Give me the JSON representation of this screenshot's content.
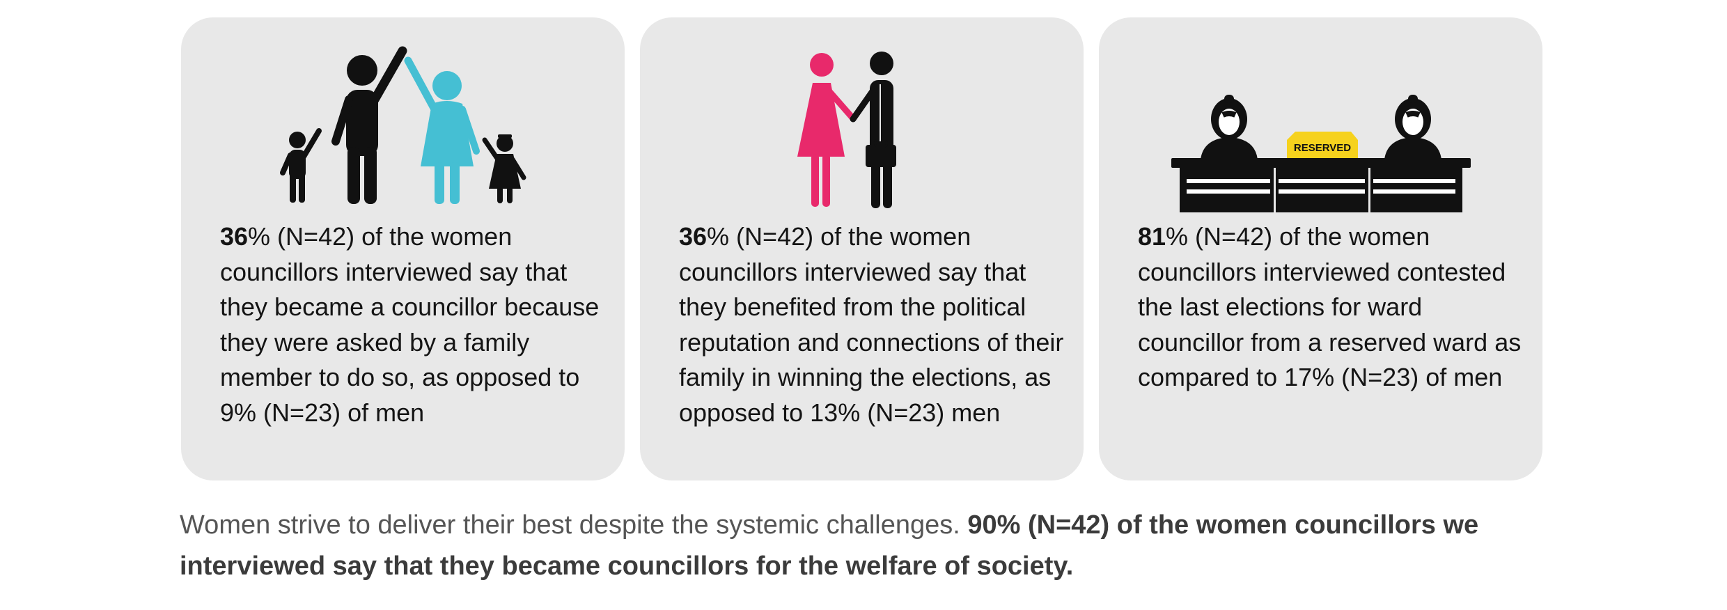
{
  "cards": [
    {
      "icon": "family-icon",
      "stat": "36",
      "text": "% (N=42) of the women councillors interviewed say that they became a councillor because they were asked by a family member to do so, as opposed to 9% (N=23) of men",
      "icon_colors": {
        "man": "#111111",
        "woman": "#45bfd3"
      }
    },
    {
      "icon": "couple-handshake-icon",
      "stat": "36",
      "text": "% (N=42) of the women councillors interviewed say that they benefited from the political reputation and connections of their family in winning the elections, as opposed to 13% (N=23) men",
      "icon_colors": {
        "woman": "#e8296b",
        "man": "#111111"
      }
    },
    {
      "icon": "reserved-seat-desk-icon",
      "stat": "81",
      "text": "% (N=42) of the women councillors interviewed contested the last elections for ward councillor from a reserved ward as compared to 17% (N=23) of men",
      "sign_label": "RESERVED",
      "icon_colors": {
        "sign": "#f6d21d",
        "desk": "#111111"
      }
    }
  ],
  "footer": {
    "light_text": "Women strive to deliver their best despite the systemic challenges. ",
    "bold_text": "90% (N=42) of the women councillors we interviewed say that they became councillors for the welfare of society."
  }
}
